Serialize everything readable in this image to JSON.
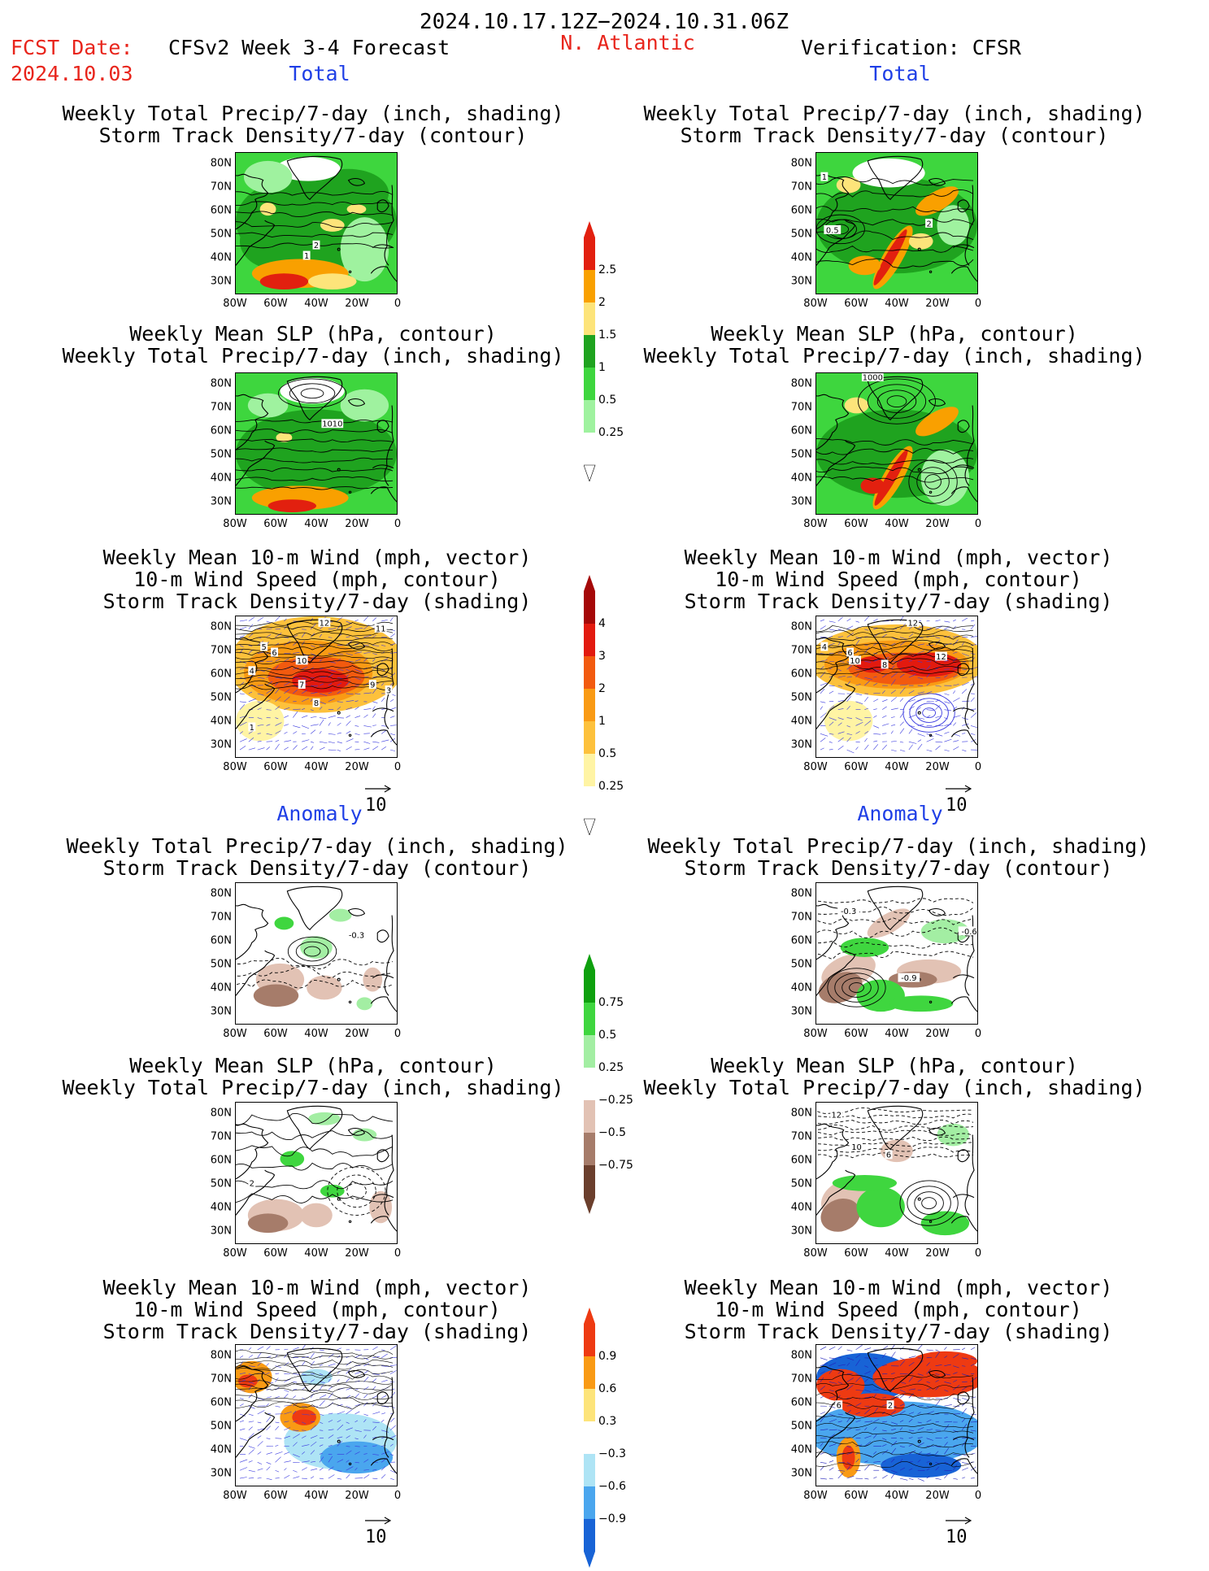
{
  "header": {
    "period": "2024.10.17.12Z−2024.10.31.06Z",
    "fcst_label": "FCST Date:",
    "fcst_date": "2024.10.03",
    "forecast_title": "CFSv2 Week 3-4 Forecast",
    "region": "N. Atlantic",
    "verification": "Verification: CFSR"
  },
  "sections": {
    "total": "Total",
    "anomaly": "Anomaly"
  },
  "panel_titles": {
    "precip_storm": [
      "Weekly Total Precip/7-day (inch, shading)",
      "Storm Track Density/7-day (contour)"
    ],
    "slp_precip": [
      "Weekly Mean SLP (hPa, contour)",
      "Weekly Total Precip/7-day (inch, shading)"
    ],
    "wind_storm": [
      "Weekly Mean 10-m Wind (mph, vector)",
      "10-m Wind Speed (mph, contour)",
      "Storm Track Density/7-day (shading)"
    ]
  },
  "axes": {
    "lat_labels": [
      "80N",
      "70N",
      "60N",
      "50N",
      "40N",
      "30N"
    ],
    "lon_labels": [
      "80W",
      "60W",
      "40W",
      "20W",
      "0"
    ]
  },
  "vector_ref": "10",
  "colorbars": {
    "precip_total": {
      "labels": [
        "2.5",
        "2",
        "1.5",
        "1",
        "0.5",
        "0.25"
      ],
      "colors": [
        "#e2200f",
        "#f9a000",
        "#fde47a",
        "#1fa31f",
        "#3ed63e",
        "#9ff29f",
        "#ffffff"
      ]
    },
    "storm_total": {
      "labels": [
        "4",
        "3",
        "2",
        "1",
        "0.5",
        "0.25"
      ],
      "colors": [
        "#a50808",
        "#e21a0f",
        "#f25a0f",
        "#f99a14",
        "#fdc13c",
        "#fff4a4",
        "#ffffff"
      ]
    },
    "precip_anom": {
      "labels": [
        "0.75",
        "0.5",
        "0.25",
        "−0.25",
        "−0.5",
        "−0.75"
      ],
      "colors": [
        "#0ea00e",
        "#3fd63f",
        "#a3eea3",
        "#ffffff",
        "#e2c2b4",
        "#a67c6a",
        "#6b3f2d"
      ]
    },
    "storm_anom": {
      "labels": [
        "0.9",
        "0.6",
        "0.3",
        "−0.3",
        "−0.6",
        "−0.9"
      ],
      "colors": [
        "#ee3a12",
        "#f99a14",
        "#fde47a",
        "#ffffff",
        "#aee4f5",
        "#4aa6ee",
        "#1863d6"
      ]
    }
  },
  "contour_labels": {
    "fc_precip_total": [
      "2",
      "1"
    ],
    "vf_precip_total": [
      "1",
      "2",
      "0.5"
    ],
    "fc_slp_total": [
      "1010"
    ],
    "vf_slp_total": [
      "1000"
    ],
    "fc_wind_total": [
      "12",
      "11",
      "5",
      "6",
      "10",
      "4",
      "7",
      "9",
      "3",
      "8",
      "1"
    ],
    "vf_wind_total": [
      "12",
      "4",
      "6",
      "10",
      "8",
      "12"
    ],
    "fc_precip_anom": [
      "-0.3"
    ],
    "vf_precip_anom": [
      "-0.3",
      "-0.6",
      "-0.9"
    ],
    "fc_slp_anom": [
      "2"
    ],
    "vf_slp_anom": [
      "12",
      "10",
      "6"
    ],
    "fc_wind_anom": [],
    "vf_wind_anom": [
      "6",
      "2"
    ]
  }
}
